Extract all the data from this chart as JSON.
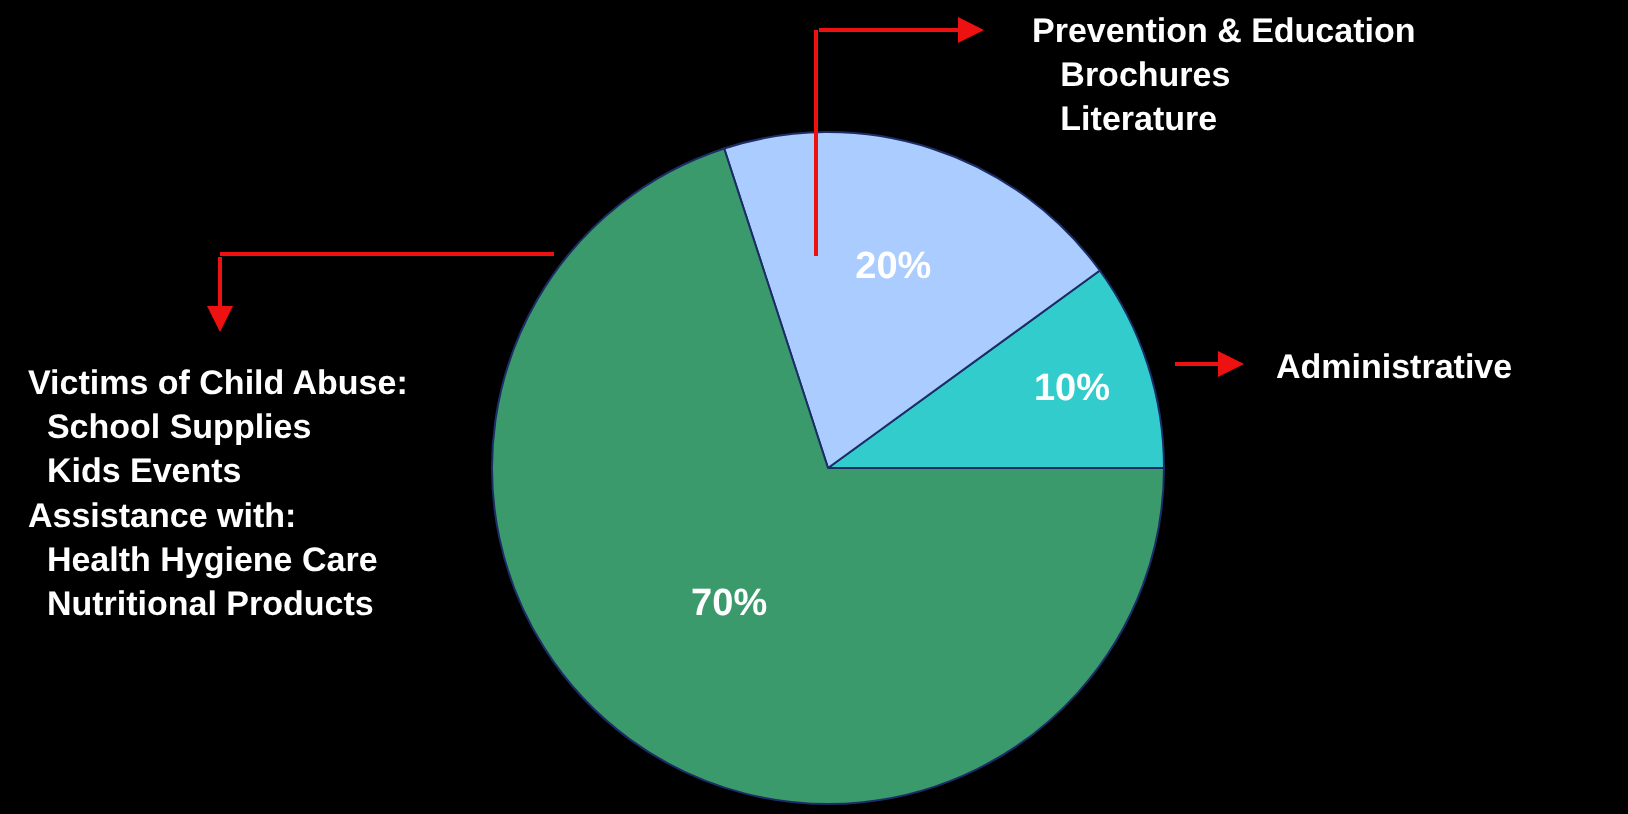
{
  "chart_data": {
    "type": "pie",
    "categories": [
      "Administrative",
      "Prevention & Education\n   Brochures\n   Literature",
      "Victims of Child Abuse:\n  School Supplies\n  Kids Events\nAssistance with:\n  Health Hygiene Care\n  Nutritional Products"
    ],
    "values": [
      10,
      20,
      70
    ],
    "value_labels": [
      "10%",
      "20%",
      "70%"
    ],
    "colors": [
      "#33cccc",
      "#aaccff",
      "#3b9a6b"
    ],
    "legend": false
  }
}
